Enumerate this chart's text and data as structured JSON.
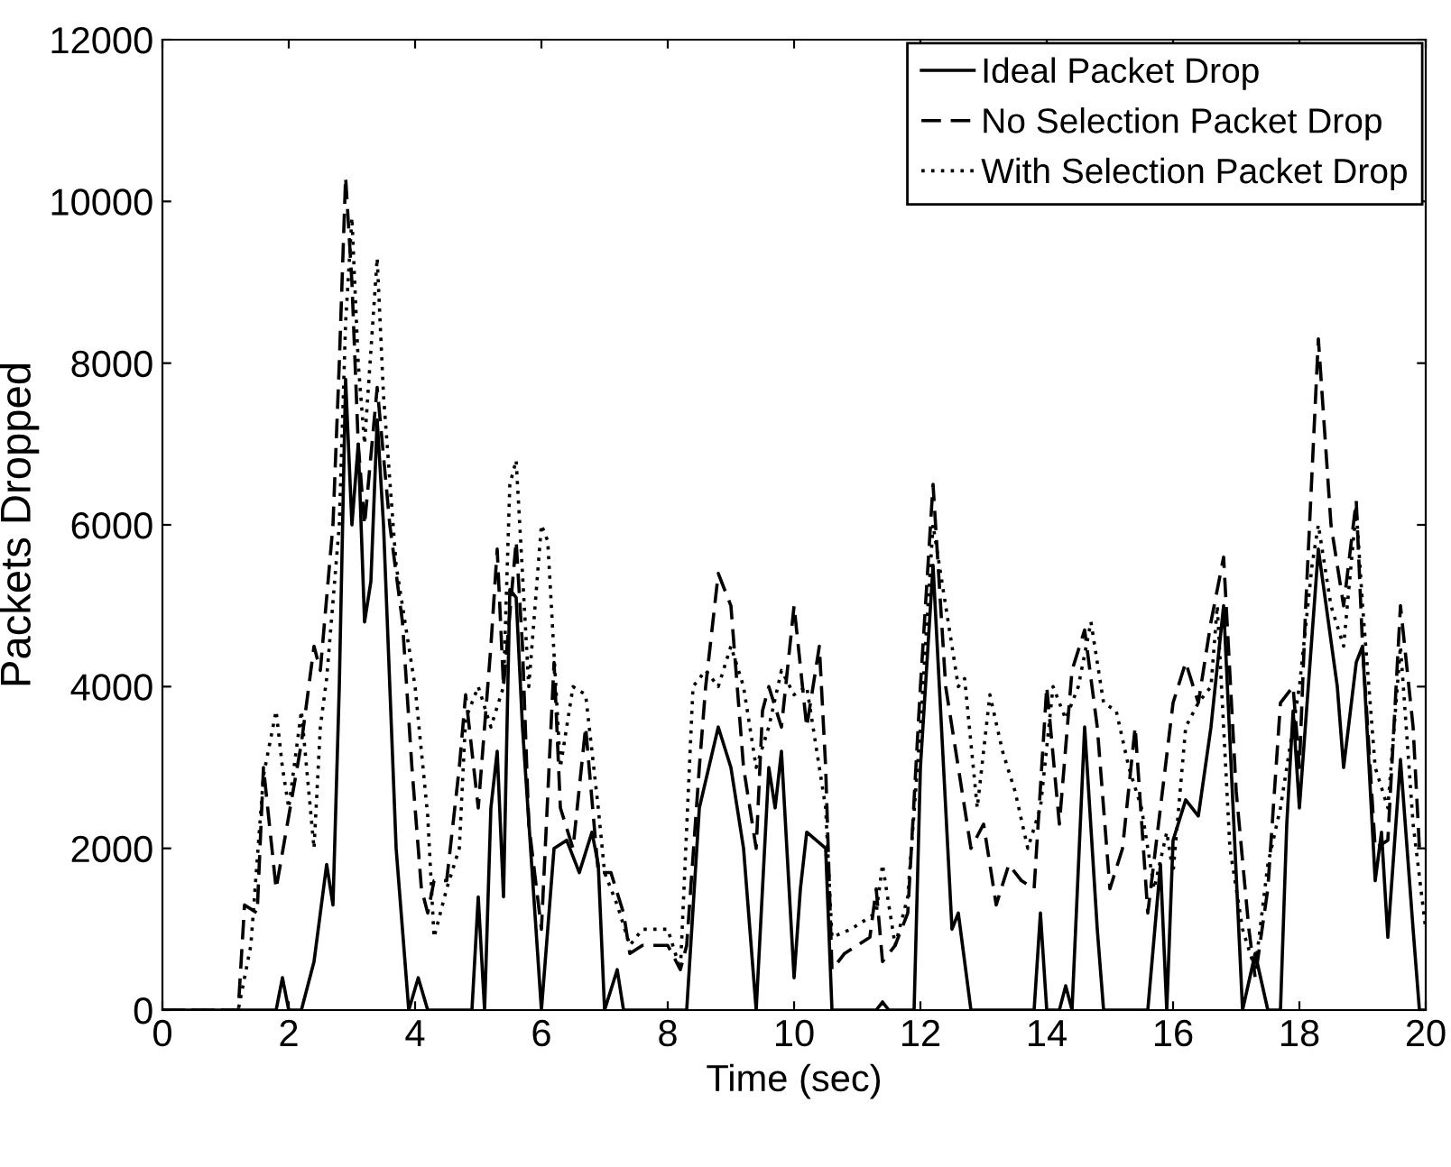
{
  "chart_data": {
    "type": "line",
    "xlabel": "Time (sec)",
    "ylabel": "Packets Dropped",
    "xlim": [
      0,
      20
    ],
    "ylim": [
      0,
      12000
    ],
    "xticks": [
      0,
      2,
      4,
      6,
      8,
      10,
      12,
      14,
      16,
      18,
      20
    ],
    "yticks": [
      0,
      2000,
      4000,
      6000,
      8000,
      10000,
      12000
    ],
    "grid": false,
    "legend": "top right",
    "marker": "none",
    "series": [
      {
        "name": "Ideal Packet Drop",
        "color": "#000000",
        "line_style": "solid",
        "x": [
          0,
          1.8,
          1.9,
          2.0,
          2.2,
          2.4,
          2.6,
          2.7,
          2.8,
          2.9,
          3.0,
          3.1,
          3.2,
          3.3,
          3.4,
          3.5,
          3.7,
          3.9,
          4.05,
          4.2,
          4.9,
          5.0,
          5.1,
          5.2,
          5.3,
          5.4,
          5.5,
          5.6,
          5.7,
          6.0,
          6.2,
          6.4,
          6.6,
          6.8,
          6.9,
          7.0,
          7.2,
          7.3,
          8.3,
          8.5,
          8.8,
          9.0,
          9.2,
          9.4,
          9.6,
          9.7,
          9.8,
          10.0,
          10.1,
          10.2,
          10.5,
          10.6,
          11.3,
          11.4,
          11.5,
          11.9,
          12.0,
          12.2,
          12.5,
          12.6,
          12.8,
          13.8,
          13.9,
          14.0,
          14.2,
          14.3,
          14.4,
          14.6,
          14.8,
          14.9,
          15.6,
          15.8,
          15.9,
          16.0,
          16.2,
          16.4,
          16.6,
          16.8,
          17.1,
          17.3,
          17.5,
          17.7,
          17.8,
          17.9,
          18.0,
          18.3,
          18.6,
          18.7,
          18.9,
          19.0,
          19.2,
          19.3,
          19.4,
          19.6,
          19.8,
          19.9,
          20
        ],
        "values": [
          0,
          0,
          400,
          0,
          0,
          600,
          1800,
          1300,
          4000,
          7800,
          6000,
          7000,
          4800,
          5300,
          7300,
          6000,
          2000,
          0,
          400,
          0,
          0,
          1400,
          0,
          2500,
          3200,
          1400,
          5200,
          5100,
          3500,
          0,
          2000,
          2100,
          1700,
          2200,
          1800,
          0,
          500,
          0,
          0,
          2500,
          3500,
          3000,
          2000,
          0,
          3000,
          2500,
          3200,
          400,
          1500,
          2200,
          2000,
          0,
          0,
          100,
          0,
          0,
          3000,
          5500,
          1000,
          1200,
          0,
          0,
          1200,
          0,
          0,
          300,
          0,
          3500,
          1000,
          0,
          0,
          1800,
          0,
          2100,
          2600,
          2400,
          3500,
          5000,
          0,
          700,
          0,
          0,
          2300,
          3700,
          2500,
          5700,
          4000,
          3000,
          4300,
          4500,
          1600,
          2200,
          900,
          3100,
          1000,
          0,
          0
        ]
      },
      {
        "name": "No Selection Packet Drop",
        "color": "#000000",
        "line_style": "dashed",
        "x": [
          0,
          1.2,
          1.3,
          1.5,
          1.6,
          1.8,
          2.0,
          2.2,
          2.4,
          2.5,
          2.7,
          2.8,
          2.9,
          3.0,
          3.1,
          3.2,
          3.4,
          3.6,
          3.8,
          3.95,
          4.1,
          4.2,
          4.3,
          4.5,
          4.7,
          4.8,
          5.0,
          5.2,
          5.3,
          5.4,
          5.6,
          5.7,
          5.8,
          6.0,
          6.2,
          6.3,
          6.5,
          6.7,
          6.9,
          7.1,
          7.3,
          7.4,
          7.6,
          8.0,
          8.2,
          8.3,
          8.5,
          8.6,
          8.8,
          9.0,
          9.2,
          9.4,
          9.5,
          9.6,
          9.8,
          10.0,
          10.2,
          10.4,
          10.5,
          10.6,
          10.8,
          11.0,
          11.2,
          11.3,
          11.4,
          11.6,
          11.8,
          12.0,
          12.2,
          12.4,
          12.6,
          12.8,
          13.0,
          13.2,
          13.4,
          13.6,
          13.8,
          14.0,
          14.2,
          14.4,
          14.6,
          14.8,
          15.0,
          15.2,
          15.4,
          15.6,
          15.8,
          16.0,
          16.2,
          16.4,
          16.6,
          16.8,
          17.0,
          17.2,
          17.3,
          17.5,
          17.7,
          17.9,
          18.0,
          18.1,
          18.3,
          18.5,
          18.7,
          18.9,
          19.0,
          19.2,
          19.4,
          19.6,
          19.8,
          19.9
        ],
        "values": [
          0,
          0,
          1300,
          1200,
          3000,
          1500,
          2400,
          3300,
          4500,
          4200,
          6000,
          8000,
          10300,
          9000,
          7000,
          6000,
          7700,
          6000,
          4800,
          3000,
          1500,
          1200,
          1600,
          1600,
          3000,
          3900,
          2500,
          4500,
          5700,
          4000,
          5800,
          4500,
          2300,
          1000,
          4300,
          2500,
          2000,
          3500,
          1700,
          1700,
          1200,
          700,
          800,
          800,
          500,
          800,
          3000,
          4000,
          5400,
          5000,
          3000,
          2000,
          3700,
          4000,
          3500,
          5000,
          3500,
          4500,
          3000,
          500,
          700,
          800,
          900,
          1500,
          600,
          800,
          1200,
          4000,
          6500,
          4000,
          3000,
          2000,
          2300,
          1300,
          1800,
          1600,
          1500,
          4000,
          2300,
          4200,
          4700,
          3500,
          1500,
          2000,
          3500,
          1200,
          2500,
          3800,
          4300,
          3800,
          4800,
          5600,
          2700,
          1000,
          400,
          1500,
          3800,
          4000,
          3000,
          5000,
          8300,
          6000,
          5000,
          6300,
          4500,
          2000,
          2100,
          5000,
          3500,
          2000
        ]
      },
      {
        "name": "With Selection Packet Drop",
        "color": "#000000",
        "line_style": "dotted",
        "x": [
          0,
          1.2,
          1.4,
          1.6,
          1.8,
          1.9,
          2.0,
          2.2,
          2.4,
          2.5,
          2.6,
          2.8,
          2.9,
          3.0,
          3.1,
          3.2,
          3.4,
          3.5,
          3.7,
          3.9,
          4.0,
          4.2,
          4.3,
          4.5,
          4.7,
          4.8,
          5.0,
          5.2,
          5.4,
          5.5,
          5.6,
          5.8,
          6.0,
          6.1,
          6.3,
          6.5,
          6.7,
          6.9,
          7.0,
          7.2,
          7.4,
          7.6,
          8.0,
          8.2,
          8.4,
          8.6,
          8.8,
          9.0,
          9.2,
          9.4,
          9.6,
          9.8,
          10.0,
          10.2,
          10.5,
          10.6,
          10.9,
          11.1,
          11.3,
          11.4,
          11.6,
          11.8,
          12.0,
          12.2,
          12.4,
          12.6,
          12.7,
          12.9,
          13.1,
          13.3,
          13.5,
          13.7,
          13.9,
          14.1,
          14.3,
          14.5,
          14.7,
          14.9,
          15.1,
          15.3,
          15.5,
          15.7,
          15.9,
          16.0,
          16.2,
          16.4,
          16.6,
          16.7,
          16.9,
          17.1,
          17.3,
          17.5,
          17.7,
          17.9,
          18.0,
          18.2,
          18.3,
          18.5,
          18.7,
          18.9,
          19.0,
          19.2,
          19.4,
          19.6,
          19.8,
          20.0
        ],
        "values": [
          0,
          0,
          800,
          2900,
          3700,
          3000,
          2500,
          3700,
          2000,
          3500,
          4100,
          6000,
          8500,
          9800,
          8000,
          7000,
          9300,
          7600,
          5500,
          4500,
          4000,
          2400,
          900,
          1500,
          2000,
          3600,
          4000,
          3500,
          4000,
          6500,
          6800,
          4000,
          6000,
          5800,
          3000,
          4000,
          3900,
          2500,
          1700,
          1300,
          800,
          1000,
          1000,
          500,
          4000,
          4200,
          4000,
          4500,
          4000,
          3000,
          3500,
          4200,
          3900,
          4000,
          2500,
          900,
          1000,
          1100,
          1200,
          1800,
          800,
          1400,
          3500,
          6000,
          5000,
          4000,
          4100,
          2500,
          3900,
          3200,
          2700,
          2000,
          2500,
          4000,
          3600,
          4000,
          4800,
          3800,
          3700,
          3000,
          2500,
          1500,
          2200,
          1700,
          3500,
          3800,
          4000,
          5000,
          2000,
          1000,
          500,
          1800,
          2500,
          3500,
          4000,
          5500,
          6000,
          5000,
          4500,
          6200,
          5000,
          3000,
          2500,
          4500,
          2300,
          1000
        ]
      }
    ]
  }
}
